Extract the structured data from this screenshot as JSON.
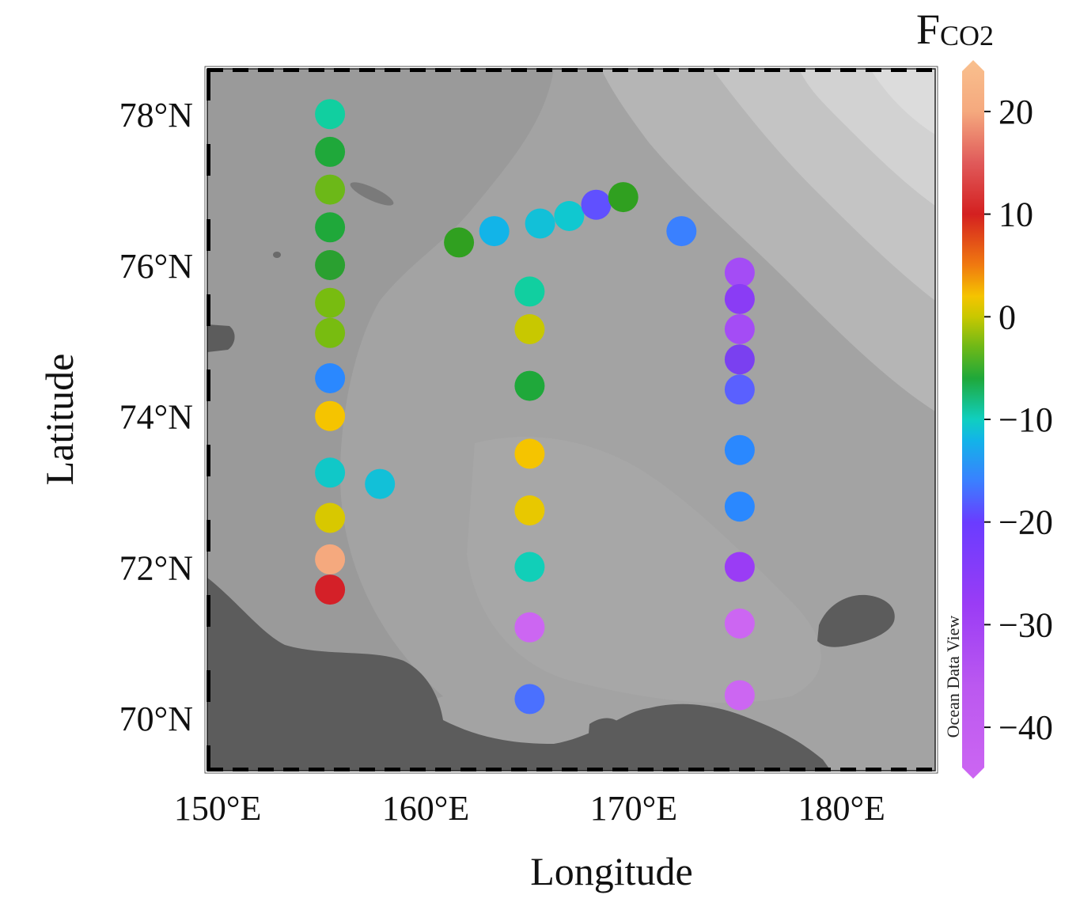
{
  "map": {
    "x_axis_title": "Longitude",
    "y_axis_title": "Latitude",
    "watermark": "Ocean Data View",
    "colorbar_title_main": "F",
    "colorbar_title_sub": "CO2"
  },
  "chart_data": {
    "type": "scatter",
    "title": "",
    "xlabel": "Longitude",
    "ylabel": "Latitude",
    "xlim": [
      149.5,
      184.5
    ],
    "ylim": [
      69.3,
      78.6
    ],
    "x_ticks": [
      150,
      160,
      170,
      180
    ],
    "x_tick_labels": [
      "150°E",
      "160°E",
      "170°E",
      "180°E"
    ],
    "y_ticks": [
      70,
      72,
      74,
      76,
      78
    ],
    "y_tick_labels": [
      "70°N",
      "72°N",
      "74°N",
      "76°N",
      "78°N"
    ],
    "color_variable": "FCO2",
    "color_range": [
      -45,
      25
    ],
    "colorbar_ticks": [
      20,
      10,
      0,
      -10,
      -20,
      -30,
      -40
    ],
    "colorbar_tick_labels": [
      "20",
      "10",
      "0",
      "−10",
      "−20",
      "−30",
      "−40"
    ],
    "colorbar_stops": [
      {
        "value": 25,
        "color": "#f9c08e"
      },
      {
        "value": 20,
        "color": "#f5a97e"
      },
      {
        "value": 15,
        "color": "#e05a5a"
      },
      {
        "value": 10,
        "color": "#d42020"
      },
      {
        "value": 5,
        "color": "#f07a10"
      },
      {
        "value": 2,
        "color": "#f5c400"
      },
      {
        "value": 0,
        "color": "#c8c800"
      },
      {
        "value": -3,
        "color": "#6cb818"
      },
      {
        "value": -6,
        "color": "#1fa83a"
      },
      {
        "value": -10,
        "color": "#10cfc0"
      },
      {
        "value": -12,
        "color": "#12b4e8"
      },
      {
        "value": -16,
        "color": "#3a80ff"
      },
      {
        "value": -20,
        "color": "#6a3cff"
      },
      {
        "value": -28,
        "color": "#9a3cf5"
      },
      {
        "value": -36,
        "color": "#bb58f0"
      },
      {
        "value": -45,
        "color": "#cc66f2"
      }
    ],
    "points": [
      {
        "lon": 155.4,
        "lat": 78.0,
        "value": -9,
        "color": "#11cfa0"
      },
      {
        "lon": 155.4,
        "lat": 77.5,
        "value": -6,
        "color": "#1fa83a"
      },
      {
        "lon": 155.4,
        "lat": 77.0,
        "value": -3,
        "color": "#6cb818"
      },
      {
        "lon": 155.4,
        "lat": 76.5,
        "value": -6,
        "color": "#1fa83a"
      },
      {
        "lon": 155.4,
        "lat": 76.0,
        "value": -5,
        "color": "#2aa030"
      },
      {
        "lon": 155.4,
        "lat": 75.5,
        "value": -2,
        "color": "#78bc10"
      },
      {
        "lon": 155.4,
        "lat": 75.1,
        "value": -2,
        "color": "#78bc10"
      },
      {
        "lon": 155.4,
        "lat": 74.5,
        "value": -15,
        "color": "#2a88ff"
      },
      {
        "lon": 155.4,
        "lat": 74.0,
        "value": 2,
        "color": "#f5c400"
      },
      {
        "lon": 155.4,
        "lat": 73.25,
        "value": -10,
        "color": "#10c8c8"
      },
      {
        "lon": 155.4,
        "lat": 72.65,
        "value": 0,
        "color": "#d8c800"
      },
      {
        "lon": 155.4,
        "lat": 72.1,
        "value": 21,
        "color": "#f5a97e"
      },
      {
        "lon": 155.4,
        "lat": 71.7,
        "value": 10,
        "color": "#d42028"
      },
      {
        "lon": 157.8,
        "lat": 73.1,
        "value": -11,
        "color": "#12c0d8"
      },
      {
        "lon": 161.6,
        "lat": 76.3,
        "value": -5,
        "color": "#30a020"
      },
      {
        "lon": 163.3,
        "lat": 76.45,
        "value": -12,
        "color": "#12b4e8"
      },
      {
        "lon": 165.5,
        "lat": 76.55,
        "value": -11,
        "color": "#12c0d8"
      },
      {
        "lon": 166.9,
        "lat": 76.65,
        "value": -10,
        "color": "#10c8d0"
      },
      {
        "lon": 168.2,
        "lat": 76.8,
        "value": -19,
        "color": "#6050ff"
      },
      {
        "lon": 169.5,
        "lat": 76.9,
        "value": -5,
        "color": "#30a020"
      },
      {
        "lon": 172.3,
        "lat": 76.45,
        "value": -16,
        "color": "#3a80ff"
      },
      {
        "lon": 165.0,
        "lat": 75.65,
        "value": -9,
        "color": "#11cfa0"
      },
      {
        "lon": 165.0,
        "lat": 75.15,
        "value": 0,
        "color": "#c8c800"
      },
      {
        "lon": 165.0,
        "lat": 74.4,
        "value": -6,
        "color": "#1fa83a"
      },
      {
        "lon": 165.0,
        "lat": 73.5,
        "value": 2,
        "color": "#f5c400"
      },
      {
        "lon": 165.0,
        "lat": 72.75,
        "value": 1,
        "color": "#e8c800"
      },
      {
        "lon": 165.0,
        "lat": 72.0,
        "value": -9,
        "color": "#11cfb8"
      },
      {
        "lon": 165.0,
        "lat": 71.2,
        "value": -38,
        "color": "#cc66f2"
      },
      {
        "lon": 165.0,
        "lat": 70.25,
        "value": -17,
        "color": "#4a70ff"
      },
      {
        "lon": 175.1,
        "lat": 75.9,
        "value": -30,
        "color": "#a44cf5"
      },
      {
        "lon": 175.1,
        "lat": 75.55,
        "value": -24,
        "color": "#8a3cf5"
      },
      {
        "lon": 175.1,
        "lat": 75.15,
        "value": -30,
        "color": "#a44cf5"
      },
      {
        "lon": 175.1,
        "lat": 74.75,
        "value": -22,
        "color": "#7a40f0"
      },
      {
        "lon": 175.1,
        "lat": 74.35,
        "value": -18,
        "color": "#5a60ff"
      },
      {
        "lon": 175.1,
        "lat": 73.55,
        "value": -14,
        "color": "#2a88ff"
      },
      {
        "lon": 175.1,
        "lat": 72.8,
        "value": -14,
        "color": "#2a88ff"
      },
      {
        "lon": 175.1,
        "lat": 72.0,
        "value": -26,
        "color": "#9a3cf5"
      },
      {
        "lon": 175.1,
        "lat": 71.25,
        "value": -38,
        "color": "#cc66f2"
      },
      {
        "lon": 175.1,
        "lat": 70.3,
        "value": -40,
        "color": "#cc66f2"
      }
    ]
  }
}
